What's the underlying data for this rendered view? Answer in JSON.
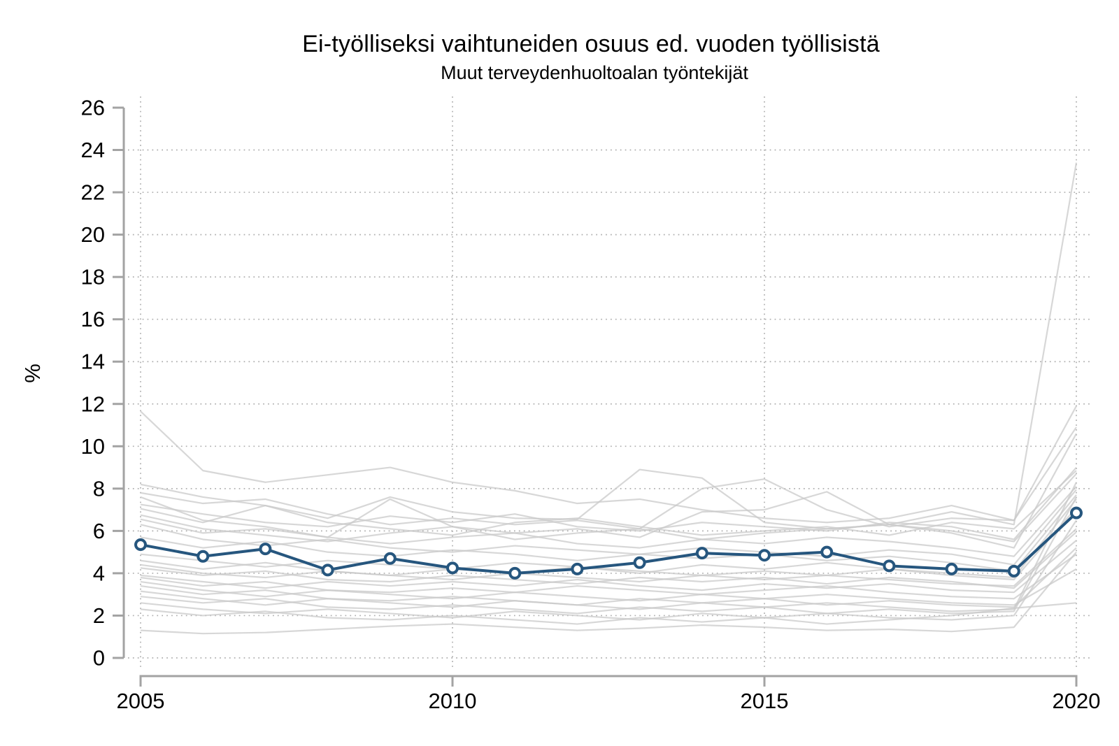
{
  "chart_data": {
    "type": "line",
    "title": "Ei-työlliseksi vaihtuneiden osuus ed. vuoden työllisistä",
    "subtitle": "Muut terveydenhuoltoalan työntekijät",
    "ylabel": "%",
    "xlim": [
      2005,
      2020
    ],
    "ylim": [
      0,
      26
    ],
    "x_ticks": [
      2005,
      2010,
      2015,
      2020
    ],
    "y_ticks": [
      0,
      2,
      4,
      6,
      8,
      10,
      12,
      14,
      16,
      18,
      20,
      22,
      24,
      26
    ],
    "grid": {
      "style": "dotted",
      "horizontal_at": [
        0,
        2,
        4,
        6,
        8,
        10,
        12,
        14,
        16,
        18,
        20,
        22,
        24
      ],
      "vertical_at": [
        2005,
        2010,
        2015,
        2020
      ]
    },
    "legend": "none",
    "years": [
      2005,
      2006,
      2007,
      2008,
      2009,
      2010,
      2011,
      2012,
      2013,
      2014,
      2015,
      2016,
      2017,
      2018,
      2019,
      2020
    ],
    "highlight_series": {
      "label": "Muut terveydenhuoltoalan työntekijät",
      "color": "#26567e",
      "marker": "open-circle",
      "values": [
        5.35,
        4.8,
        5.15,
        4.15,
        4.7,
        4.25,
        4.0,
        4.2,
        4.5,
        4.95,
        4.85,
        5.0,
        4.35,
        4.2,
        4.1,
        6.85
      ]
    },
    "background_series": {
      "color": "#c9c9c9",
      "series": [
        [
          11.65,
          8.85,
          8.3,
          8.65,
          9.0,
          8.3,
          7.9,
          7.3,
          7.5,
          7.0,
          6.6,
          6.4,
          6.6,
          7.2,
          6.5,
          10.9
        ],
        [
          8.2,
          7.6,
          7.2,
          6.6,
          7.6,
          6.9,
          6.6,
          6.55,
          8.9,
          8.5,
          6.4,
          6.1,
          6.3,
          6.9,
          6.3,
          23.4
        ],
        [
          7.8,
          7.3,
          7.5,
          6.8,
          6.3,
          6.6,
          6.3,
          6.5,
          6.1,
          8.0,
          8.45,
          7.0,
          6.2,
          6.6,
          6.5,
          11.9
        ],
        [
          7.6,
          6.5,
          6.2,
          5.7,
          7.5,
          6.2,
          5.9,
          6.1,
          5.7,
          6.9,
          7.0,
          7.85,
          6.3,
          5.9,
          5.2,
          10.6
        ],
        [
          7.25,
          6.8,
          6.4,
          6.2,
          6.7,
          6.4,
          6.8,
          6.2,
          6.0,
          6.4,
          6.2,
          6.0,
          6.4,
          6.2,
          5.6,
          9.0
        ],
        [
          7.05,
          6.4,
          7.2,
          6.4,
          6.1,
          5.8,
          6.4,
          6.6,
          6.2,
          5.8,
          6.0,
          6.2,
          5.8,
          6.4,
          6.1,
          8.85
        ],
        [
          6.75,
          6.1,
          5.8,
          5.5,
          5.9,
          6.2,
          5.6,
          5.9,
          6.1,
          5.6,
          5.9,
          6.1,
          6.3,
          6.0,
          5.5,
          8.7
        ],
        [
          6.55,
          5.9,
          6.1,
          5.7,
          5.4,
          5.7,
          5.9,
          5.4,
          5.2,
          5.6,
          5.4,
          5.7,
          5.5,
          5.2,
          4.8,
          8.1
        ],
        [
          6.3,
          5.6,
          5.3,
          5.6,
          5.2,
          5.0,
          5.3,
          5.1,
          4.9,
          5.2,
          5.0,
          4.8,
          5.1,
          4.9,
          4.4,
          7.95
        ],
        [
          5.7,
          5.2,
          5.5,
          5.0,
          4.8,
          5.1,
          4.9,
          4.6,
          4.9,
          4.7,
          4.9,
          4.6,
          4.8,
          4.5,
          4.1,
          7.7
        ],
        [
          4.9,
          4.6,
          4.3,
          4.6,
          4.4,
          4.2,
          4.5,
          4.3,
          4.0,
          4.4,
          4.2,
          4.5,
          4.2,
          4.0,
          3.8,
          7.5
        ],
        [
          4.6,
          4.2,
          4.5,
          4.1,
          3.9,
          4.2,
          4.0,
          4.3,
          4.1,
          3.9,
          4.1,
          3.9,
          4.2,
          3.9,
          3.7,
          7.1
        ],
        [
          4.4,
          4.0,
          3.8,
          4.1,
          3.9,
          3.7,
          4.0,
          3.8,
          3.6,
          3.9,
          3.7,
          3.9,
          3.7,
          3.5,
          3.4,
          6.1
        ],
        [
          4.25,
          3.9,
          4.1,
          3.7,
          3.6,
          3.9,
          3.7,
          3.5,
          3.8,
          3.6,
          3.8,
          3.5,
          3.8,
          3.6,
          3.3,
          5.95
        ],
        [
          3.9,
          3.6,
          3.3,
          3.6,
          3.4,
          3.6,
          3.4,
          3.7,
          3.4,
          3.2,
          3.5,
          3.3,
          3.5,
          3.2,
          3.1,
          5.55
        ],
        [
          3.8,
          3.4,
          3.6,
          3.2,
          3.1,
          3.3,
          3.1,
          3.4,
          3.2,
          3.0,
          3.2,
          3.4,
          3.1,
          2.9,
          2.8,
          4.9
        ],
        [
          3.6,
          3.2,
          2.9,
          3.2,
          3.0,
          2.8,
          3.1,
          2.9,
          2.7,
          3.0,
          2.8,
          3.0,
          2.8,
          2.6,
          2.5,
          4.2
        ],
        [
          3.4,
          3.0,
          3.2,
          2.8,
          2.7,
          2.9,
          2.7,
          2.5,
          2.8,
          2.6,
          2.8,
          2.5,
          2.7,
          2.5,
          2.4,
          5.2
        ],
        [
          3.15,
          2.8,
          2.5,
          2.8,
          2.6,
          2.4,
          2.7,
          2.5,
          2.3,
          2.6,
          2.4,
          2.6,
          2.4,
          2.2,
          2.3,
          8.3
        ],
        [
          2.9,
          2.6,
          2.8,
          2.4,
          2.3,
          2.5,
          2.3,
          2.1,
          2.4,
          2.2,
          2.4,
          2.1,
          2.3,
          2.1,
          2.2,
          7.6
        ],
        [
          2.6,
          2.3,
          2.1,
          2.3,
          2.1,
          1.9,
          2.2,
          2.0,
          1.8,
          2.1,
          1.9,
          2.1,
          1.9,
          1.8,
          2.0,
          6.5
        ],
        [
          2.3,
          2.0,
          2.2,
          1.9,
          1.8,
          2.0,
          1.8,
          1.6,
          1.9,
          1.7,
          1.9,
          1.6,
          1.8,
          2.0,
          2.35,
          2.6
        ],
        [
          1.3,
          1.15,
          1.2,
          1.35,
          1.5,
          1.6,
          1.45,
          1.3,
          1.4,
          1.55,
          1.45,
          1.3,
          1.35,
          1.25,
          1.45,
          5.0
        ]
      ]
    }
  },
  "colors": {
    "background": "#ffffff",
    "axis_line": "#a3a3a3",
    "grid_dot": "#adadad",
    "tick_text": "#000000",
    "highlight_line": "#26567e",
    "background_line": "#c9c9c9"
  }
}
